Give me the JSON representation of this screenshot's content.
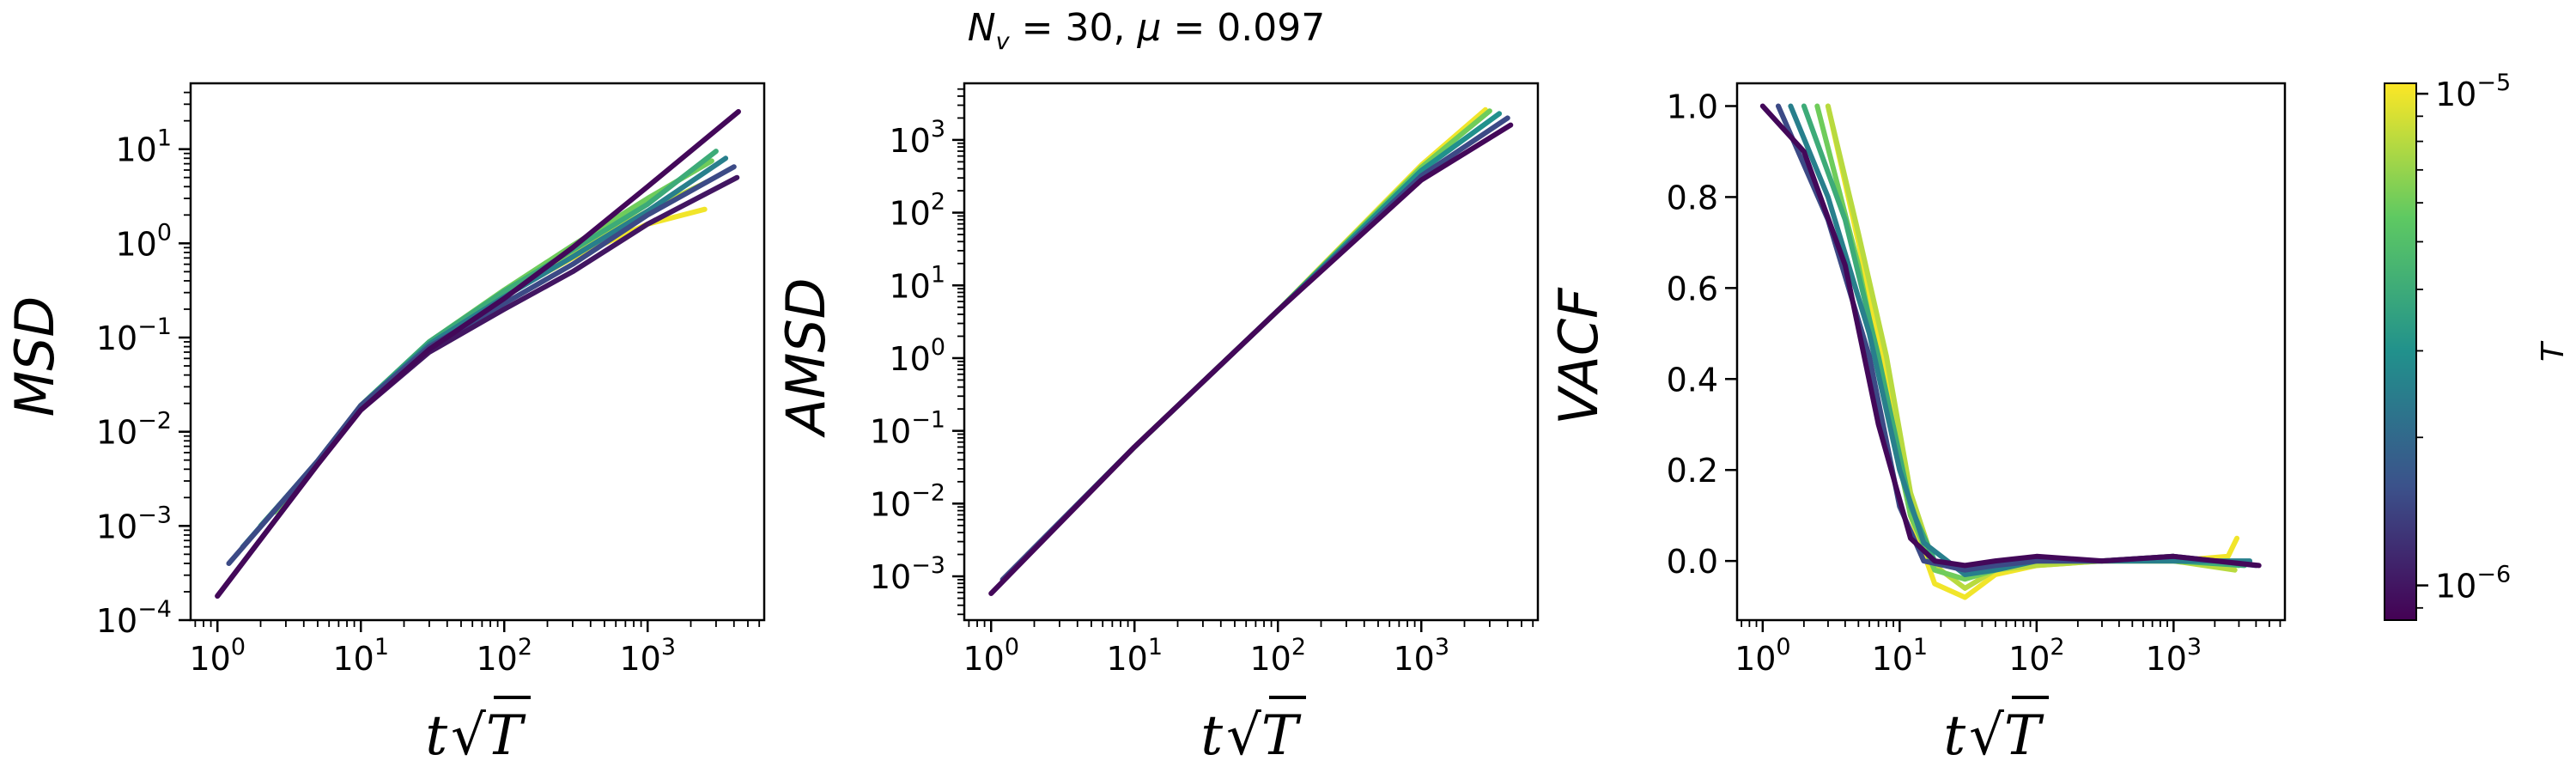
{
  "figure": {
    "title": "N_v = 30, μ = 0.097",
    "title_parts": {
      "n": "N",
      "n_sub": "v",
      "eq1": " = 30, ",
      "mu": "μ",
      "eq2": " = 0.097"
    }
  },
  "colors": {
    "dark": "#440154",
    "yellow": "#e7e419",
    "viridis_stops": [
      "#440154",
      "#3b528b",
      "#21918c",
      "#5ec962",
      "#fde725"
    ]
  },
  "xlabel": {
    "t": "t",
    "sqrt": "√",
    "T": "T"
  },
  "colorbar": {
    "label": "T",
    "scale": "log",
    "range": [
      8.5e-07,
      1.05e-05
    ],
    "ticks": [
      {
        "value": 1e-05,
        "base": "10",
        "exp": "−5"
      },
      {
        "value": 1e-06,
        "base": "10",
        "exp": "−6"
      }
    ]
  },
  "chart_data": [
    {
      "type": "line",
      "title": "",
      "ylabel": "MSD",
      "xlabel": "t√T",
      "xscale": "log",
      "yscale": "log",
      "xlim": [
        0.65,
        6500
      ],
      "ylim": [
        0.0001,
        50
      ],
      "xticks": [
        {
          "value": 1,
          "base": "10",
          "exp": "0"
        },
        {
          "value": 10,
          "base": "10",
          "exp": "1"
        },
        {
          "value": 100,
          "base": "10",
          "exp": "2"
        },
        {
          "value": 1000,
          "base": "10",
          "exp": "3"
        }
      ],
      "yticks": [
        {
          "value": 0.0001,
          "base": "10",
          "exp": "−4"
        },
        {
          "value": 0.001,
          "base": "10",
          "exp": "−3"
        },
        {
          "value": 0.01,
          "base": "10",
          "exp": "−2"
        },
        {
          "value": 0.1,
          "base": "10",
          "exp": "−1"
        },
        {
          "value": 1,
          "base": "10",
          "exp": "0"
        },
        {
          "value": 10,
          "base": "10",
          "exp": "1"
        }
      ],
      "grid": false,
      "series": [
        {
          "T": 1e-05,
          "x": [
            3,
            5,
            10,
            30,
            100,
            300,
            1000,
            2500
          ],
          "y": [
            0.0017,
            0.0045,
            0.018,
            0.085,
            0.28,
            0.7,
            1.6,
            2.3
          ]
        },
        {
          "T": 8e-06,
          "x": [
            3,
            5,
            10,
            30,
            100,
            300,
            1000,
            2600
          ],
          "y": [
            0.0017,
            0.0046,
            0.018,
            0.088,
            0.3,
            0.8,
            2.2,
            4.5
          ]
        },
        {
          "T": 6e-06,
          "x": [
            2.5,
            5,
            10,
            30,
            100,
            300,
            1000,
            2800
          ],
          "y": [
            0.0014,
            0.0047,
            0.019,
            0.09,
            0.32,
            0.95,
            3.0,
            7.5
          ]
        },
        {
          "T": 4e-06,
          "x": [
            2,
            5,
            10,
            30,
            100,
            300,
            1000,
            3000
          ],
          "y": [
            0.001,
            0.0048,
            0.019,
            0.09,
            0.31,
            0.85,
            2.6,
            9.5
          ]
        },
        {
          "T": 2.5e-06,
          "x": [
            1.5,
            5,
            10,
            30,
            100,
            300,
            1000,
            3500
          ],
          "y": [
            0.0006,
            0.0049,
            0.019,
            0.085,
            0.27,
            0.72,
            2.2,
            8.0
          ]
        },
        {
          "T": 1.5e-06,
          "x": [
            1.2,
            5,
            10,
            30,
            100,
            300,
            1000,
            4000
          ],
          "y": [
            0.0004,
            0.0049,
            0.019,
            0.08,
            0.23,
            0.6,
            2.0,
            6.5
          ]
        },
        {
          "T": 1e-06,
          "x": [
            1,
            5,
            10,
            30,
            100,
            300,
            1000,
            4200
          ],
          "y": [
            0.00018,
            0.0045,
            0.017,
            0.07,
            0.2,
            0.5,
            1.6,
            5.0
          ]
        },
        {
          "T": 9e-07,
          "x": [
            1,
            5,
            10,
            30,
            100,
            300,
            1000,
            4300
          ],
          "y": [
            0.00018,
            0.0045,
            0.017,
            0.075,
            0.26,
            0.9,
            4.0,
            25
          ]
        }
      ]
    },
    {
      "type": "line",
      "title": "",
      "ylabel": "AMSD",
      "xlabel": "t√T",
      "xscale": "log",
      "yscale": "log",
      "xlim": [
        0.65,
        6500
      ],
      "ylim": [
        0.00025,
        6000
      ],
      "xticks": [
        {
          "value": 1,
          "base": "10",
          "exp": "0"
        },
        {
          "value": 10,
          "base": "10",
          "exp": "1"
        },
        {
          "value": 100,
          "base": "10",
          "exp": "2"
        },
        {
          "value": 1000,
          "base": "10",
          "exp": "3"
        }
      ],
      "yticks": [
        {
          "value": 0.001,
          "base": "10",
          "exp": "−3"
        },
        {
          "value": 0.01,
          "base": "10",
          "exp": "−2"
        },
        {
          "value": 0.1,
          "base": "10",
          "exp": "−1"
        },
        {
          "value": 1,
          "base": "10",
          "exp": "0"
        },
        {
          "value": 10,
          "base": "10",
          "exp": "1"
        },
        {
          "value": 100,
          "base": "10",
          "exp": "2"
        },
        {
          "value": 1000,
          "base": "10",
          "exp": "3"
        }
      ],
      "grid": false,
      "series": [
        {
          "T": 1e-05,
          "x": [
            3,
            10,
            100,
            1000,
            2800
          ],
          "y": [
            0.0055,
            0.06,
            4.5,
            450,
            2600
          ]
        },
        {
          "T": 6e-06,
          "x": [
            2.5,
            10,
            100,
            1000,
            3000
          ],
          "y": [
            0.0038,
            0.06,
            4.5,
            420,
            2500
          ]
        },
        {
          "T": 3e-06,
          "x": [
            1.8,
            10,
            100,
            1000,
            3500
          ],
          "y": [
            0.002,
            0.06,
            4.5,
            380,
            2300
          ]
        },
        {
          "T": 1.5e-06,
          "x": [
            1.2,
            10,
            100,
            1000,
            4000
          ],
          "y": [
            0.0009,
            0.06,
            4.5,
            320,
            2000
          ]
        },
        {
          "T": 9e-07,
          "x": [
            1,
            10,
            100,
            1000,
            4200
          ],
          "y": [
            0.00058,
            0.06,
            4.5,
            280,
            1600
          ]
        }
      ]
    },
    {
      "type": "line",
      "title": "",
      "ylabel": "VACF",
      "xlabel": "t√T",
      "xscale": "log",
      "yscale": "linear",
      "xlim": [
        0.65,
        6500
      ],
      "ylim": [
        -0.13,
        1.05
      ],
      "xticks": [
        {
          "value": 1,
          "base": "10",
          "exp": "0"
        },
        {
          "value": 10,
          "base": "10",
          "exp": "1"
        },
        {
          "value": 100,
          "base": "10",
          "exp": "2"
        },
        {
          "value": 1000,
          "base": "10",
          "exp": "3"
        }
      ],
      "yticks": [
        {
          "value": 0.0,
          "label": "0.0"
        },
        {
          "value": 0.2,
          "label": "0.2"
        },
        {
          "value": 0.4,
          "label": "0.4"
        },
        {
          "value": 0.6,
          "label": "0.6"
        },
        {
          "value": 0.8,
          "label": "0.8"
        },
        {
          "value": 1.0,
          "label": "1.0"
        }
      ],
      "grid": false,
      "series": [
        {
          "T": 1e-05,
          "x": [
            3,
            5,
            8,
            12,
            18,
            30,
            50,
            100,
            300,
            1000,
            2500,
            2900
          ],
          "y": [
            1.0,
            0.7,
            0.4,
            0.1,
            -0.05,
            -0.08,
            -0.03,
            -0.01,
            0.0,
            0.0,
            0.01,
            0.05
          ]
        },
        {
          "T": 8e-06,
          "x": [
            3,
            5,
            8,
            12,
            18,
            30,
            50,
            100,
            300,
            1000,
            2800
          ],
          "y": [
            1.0,
            0.72,
            0.45,
            0.15,
            -0.01,
            -0.06,
            -0.02,
            -0.01,
            0.0,
            0.0,
            -0.02
          ]
        },
        {
          "T": 6e-06,
          "x": [
            2.5,
            5,
            8,
            12,
            18,
            30,
            50,
            100,
            300,
            1000,
            3000
          ],
          "y": [
            1.0,
            0.65,
            0.35,
            0.1,
            -0.02,
            -0.04,
            -0.02,
            0.0,
            0.0,
            0.01,
            -0.01
          ]
        },
        {
          "T": 4e-06,
          "x": [
            2,
            4,
            7,
            12,
            18,
            30,
            50,
            100,
            300,
            1000,
            3300
          ],
          "y": [
            1.0,
            0.75,
            0.45,
            0.12,
            0.0,
            -0.02,
            -0.01,
            0.0,
            0.0,
            0.0,
            -0.01
          ]
        },
        {
          "T": 2.5e-06,
          "x": [
            1.6,
            3,
            6,
            10,
            15,
            30,
            50,
            100,
            300,
            1000,
            3600
          ],
          "y": [
            1.0,
            0.8,
            0.5,
            0.2,
            0.04,
            -0.03,
            -0.02,
            0.0,
            0.0,
            0.0,
            0.0
          ]
        },
        {
          "T": 1.5e-06,
          "x": [
            1.3,
            3,
            6,
            10,
            15,
            30,
            50,
            100,
            300,
            1000,
            4000
          ],
          "y": [
            1.0,
            0.75,
            0.45,
            0.12,
            0.0,
            -0.02,
            -0.01,
            0.0,
            0.0,
            0.01,
            -0.01
          ]
        },
        {
          "T": 9e-07,
          "x": [
            1,
            2,
            4,
            7,
            12,
            18,
            30,
            50,
            100,
            300,
            1000,
            4200
          ],
          "y": [
            1.0,
            0.9,
            0.65,
            0.3,
            0.05,
            0.0,
            -0.01,
            0.0,
            0.01,
            0.0,
            0.01,
            -0.01
          ]
        }
      ]
    }
  ]
}
